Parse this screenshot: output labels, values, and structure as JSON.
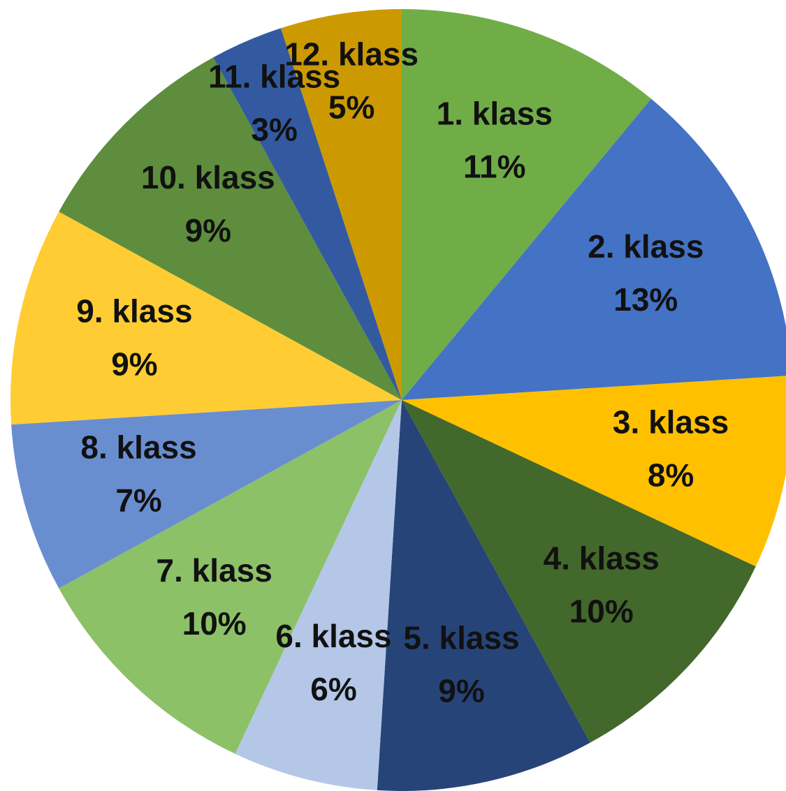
{
  "chart_data": {
    "type": "pie",
    "categories": [
      "1. klass",
      "2. klass",
      "3. klass",
      "4. klass",
      "5. klass",
      "6. klass",
      "7. klass",
      "8. klass",
      "9. klass",
      "10. klass",
      "11. klass",
      "12. klass"
    ],
    "values": [
      11,
      13,
      8,
      10,
      9,
      6,
      10,
      7,
      9,
      9,
      3,
      5
    ],
    "value_labels": [
      "11%",
      "13%",
      "8%",
      "10%",
      "9%",
      "6%",
      "10%",
      "7%",
      "9%",
      "9%",
      "3%",
      "5%"
    ],
    "colors": [
      "#70ad47",
      "#4472c4",
      "#ffc000",
      "#43682b",
      "#264478",
      "#b4c7e7",
      "#8cc168",
      "#698ed0",
      "#ffcd33",
      "#5e8e3d",
      "#335aa1",
      "#cc9a00"
    ]
  }
}
